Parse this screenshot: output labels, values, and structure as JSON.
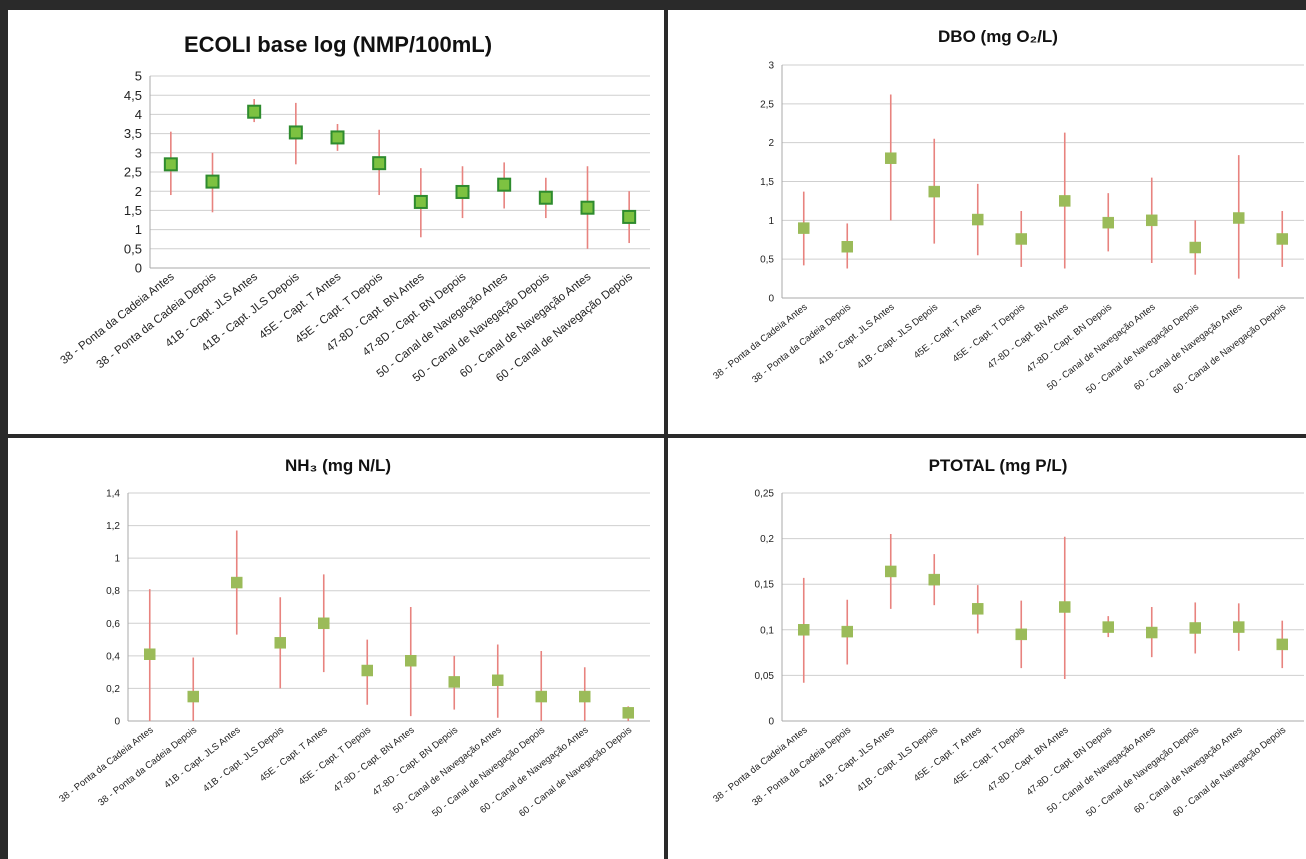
{
  "chart_data": [
    {
      "type": "scatter",
      "title": "ECOLI base log (NMP/100mL)",
      "xlabel": "",
      "ylabel": "",
      "ylim": [
        0,
        5
      ],
      "yticks": [
        "0",
        "0,5",
        "1",
        "1,5",
        "2",
        "2,5",
        "3",
        "3,5",
        "4",
        "4,5",
        "5"
      ],
      "ytick_values": [
        0,
        0.5,
        1,
        1.5,
        2,
        2.5,
        3,
        3.5,
        4,
        4.5,
        5
      ],
      "grid": true,
      "categories": [
        "38 - Ponta da Cadeia Antes",
        "38 - Ponta da Cadeia Depois",
        "41B - Capt. JLS Antes",
        "41B - Capt. JLS Depois",
        "45E - Capt. T Antes",
        "45E - Capt. T Depois",
        "47-8D - Capt. BN Antes",
        "47-8D - Capt. BN Depois",
        "50 - Canal de Navegação Antes",
        "50 - Canal de Navegação Depois",
        "60 - Canal de Navegação Antes",
        "60 - Canal de Navegação Depois"
      ],
      "values": [
        2.7,
        2.25,
        4.07,
        3.53,
        3.4,
        2.73,
        1.72,
        1.98,
        2.17,
        1.83,
        1.57,
        1.33
      ],
      "err_low": [
        1.9,
        1.45,
        3.8,
        2.7,
        3.05,
        1.9,
        0.8,
        1.3,
        1.55,
        1.3,
        0.5,
        0.65
      ],
      "err_high": [
        3.55,
        3.0,
        4.4,
        4.3,
        3.75,
        3.6,
        2.6,
        2.65,
        2.75,
        2.35,
        2.65,
        2.0
      ],
      "colors": {
        "marker_fill": "#7dc241",
        "marker_stroke": "#2e8b2e",
        "error_bar": "#e8837f"
      }
    },
    {
      "type": "scatter",
      "title": "DBO (mg O₂/L)",
      "xlabel": "",
      "ylabel": "",
      "ylim": [
        0,
        3
      ],
      "yticks": [
        "0",
        "0,5",
        "1",
        "1,5",
        "2",
        "2,5",
        "3"
      ],
      "ytick_values": [
        0,
        0.5,
        1,
        1.5,
        2,
        2.5,
        3
      ],
      "grid": true,
      "categories": [
        "38 - Ponta da Cadeia Antes",
        "38 - Ponta da Cadeia Depois",
        "41B - Capt. JLS Antes",
        "41B - Capt. JLS Depois",
        "45E - Capt. T Antes",
        "45E - Capt. T Depois",
        "47-8D - Capt. BN Antes",
        "47-8D - Capt. BN Depois",
        "50 - Canal de Navegação Antes",
        "50 - Canal de Navegação Depois",
        "60 - Canal de Navegação Antes",
        "60 - Canal de Navegação Depois"
      ],
      "values": [
        0.9,
        0.66,
        1.8,
        1.37,
        1.01,
        0.76,
        1.25,
        0.97,
        1.0,
        0.65,
        1.03,
        0.76
      ],
      "err_low": [
        0.42,
        0.38,
        1.0,
        0.7,
        0.55,
        0.4,
        0.38,
        0.6,
        0.45,
        0.3,
        0.25,
        0.4
      ],
      "err_high": [
        1.37,
        0.96,
        2.62,
        2.05,
        1.47,
        1.12,
        2.13,
        1.35,
        1.55,
        1.0,
        1.84,
        1.12
      ],
      "colors": {
        "marker_fill": "#9bbb59",
        "marker_stroke": "#9bbb59",
        "error_bar": "#e8837f"
      }
    },
    {
      "type": "scatter",
      "title": "NH₃ (mg N/L)",
      "xlabel": "",
      "ylabel": "",
      "ylim": [
        0,
        1.4
      ],
      "yticks": [
        "0",
        "0,2",
        "0,4",
        "0,6",
        "0,8",
        "1",
        "1,2",
        "1,4"
      ],
      "ytick_values": [
        0,
        0.2,
        0.4,
        0.6,
        0.8,
        1.0,
        1.2,
        1.4
      ],
      "grid": true,
      "categories": [
        "38 - Ponta da Cadeia Antes",
        "38 - Ponta da Cadeia Depois",
        "41B - Capt. JLS Antes",
        "41B - Capt. JLS Depois",
        "45E - Capt. T Antes",
        "45E - Capt. T Depois",
        "47-8D - Capt. BN Antes",
        "47-8D - Capt. BN Depois",
        "50 - Canal de Navegação Antes",
        "50 - Canal de Navegação Depois",
        "60 - Canal de Navegação Antes",
        "60 - Canal de Navegação Depois"
      ],
      "values": [
        0.41,
        0.15,
        0.85,
        0.48,
        0.6,
        0.31,
        0.37,
        0.24,
        0.25,
        0.15,
        0.15,
        0.05
      ],
      "err_low": [
        0.0,
        0.0,
        0.53,
        0.2,
        0.3,
        0.1,
        0.03,
        0.07,
        0.02,
        0.0,
        0.0,
        0.0
      ],
      "err_high": [
        0.81,
        0.39,
        1.17,
        0.76,
        0.9,
        0.5,
        0.7,
        0.4,
        0.47,
        0.43,
        0.33,
        0.09
      ],
      "colors": {
        "marker_fill": "#9bbb59",
        "marker_stroke": "#9bbb59",
        "error_bar": "#e8837f"
      }
    },
    {
      "type": "scatter",
      "title": "PTOTAL (mg P/L)",
      "xlabel": "",
      "ylabel": "",
      "ylim": [
        0,
        0.25
      ],
      "yticks": [
        "0",
        "0,05",
        "0,1",
        "0,15",
        "0,2",
        "0,25"
      ],
      "ytick_values": [
        0,
        0.05,
        0.1,
        0.15,
        0.2,
        0.25
      ],
      "grid": true,
      "categories": [
        "38 - Ponta da Cadeia Antes",
        "38 - Ponta da Cadeia Depois",
        "41B - Capt. JLS Antes",
        "41B - Capt. JLS Depois",
        "45E - Capt. T Antes",
        "45E - Capt. T Depois",
        "47-8D - Capt. BN Antes",
        "47-8D - Capt. BN Depois",
        "50 - Canal de Navegação Antes",
        "50 - Canal de Navegação Depois",
        "60 - Canal de Navegação Antes",
        "60 - Canal de Navegação Depois"
      ],
      "values": [
        0.1,
        0.098,
        0.164,
        0.155,
        0.123,
        0.095,
        0.125,
        0.103,
        0.097,
        0.102,
        0.103,
        0.084
      ],
      "err_low": [
        0.042,
        0.062,
        0.123,
        0.127,
        0.096,
        0.058,
        0.046,
        0.092,
        0.07,
        0.074,
        0.077,
        0.058
      ],
      "err_high": [
        0.157,
        0.133,
        0.205,
        0.183,
        0.149,
        0.132,
        0.202,
        0.115,
        0.125,
        0.13,
        0.129,
        0.11
      ],
      "colors": {
        "marker_fill": "#9bbb59",
        "marker_stroke": "#9bbb59",
        "error_bar": "#e8837f"
      }
    }
  ]
}
